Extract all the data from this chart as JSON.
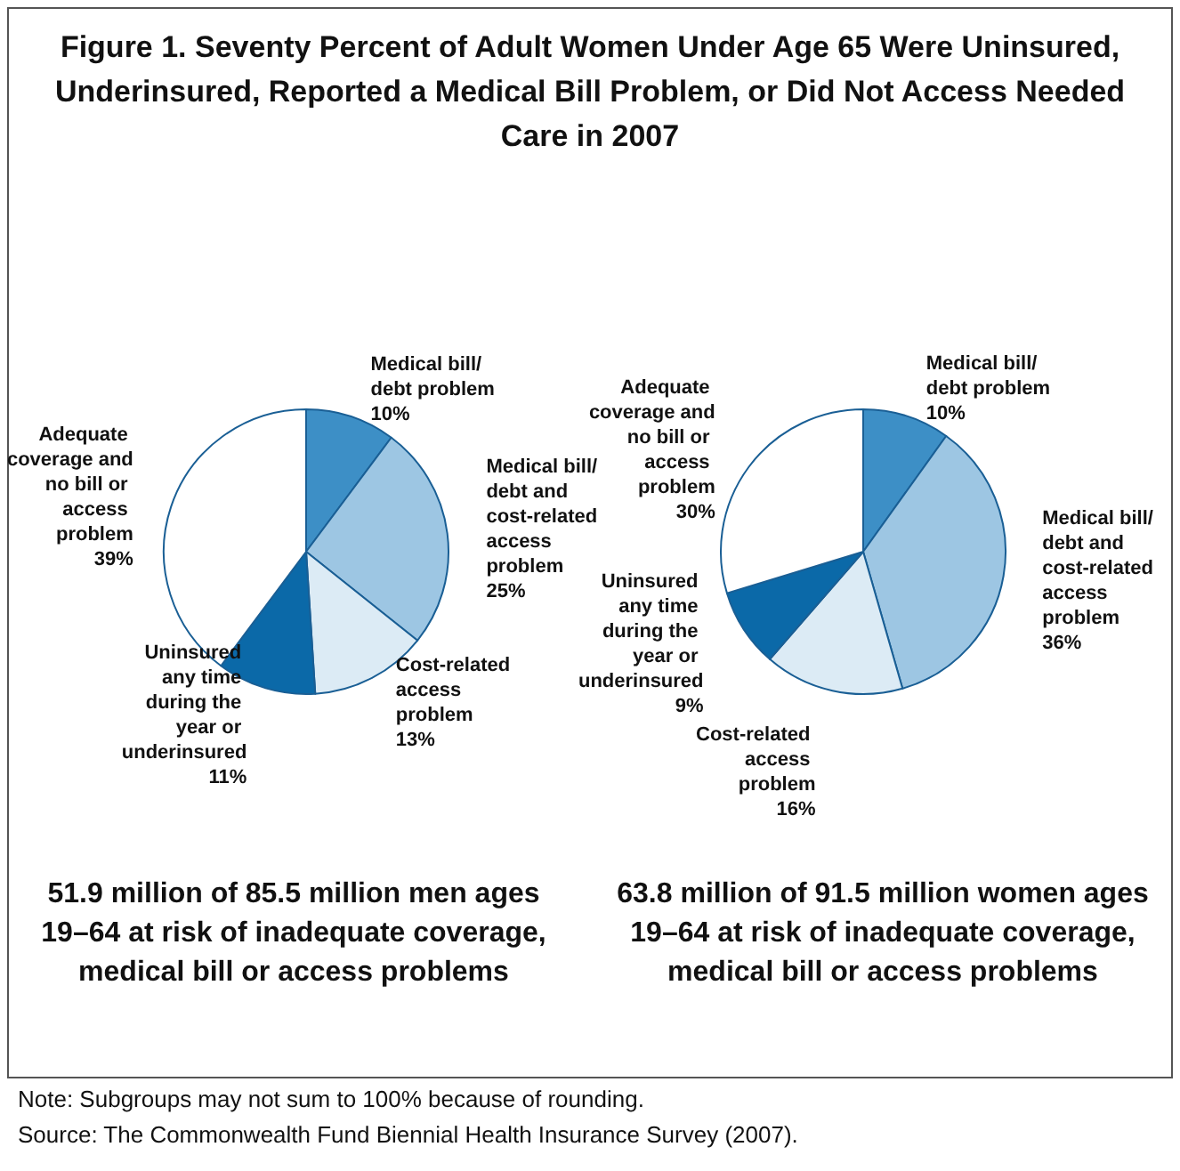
{
  "chart_data": [
    {
      "type": "pie",
      "title": "Figure 1. Seventy Percent of Adult Women Under Age 65 Were Uninsured, Underinsured, Reported a Medical Bill Problem, or Did Not Access Needed Care in 2007",
      "xlabel": "51.9 million of 85.5 million men ages 19–64 at risk of inadequate coverage, medical bill or access problems",
      "categories": [
        "Medical bill/debt problem",
        "Medical bill/debt and cost-related access problem",
        "Cost-related access problem",
        "Uninsured any time during the year or underinsured",
        "Adequate coverage and no bill or access problem"
      ],
      "values": [
        10,
        25,
        13,
        11,
        39
      ],
      "value_labels": [
        "10%",
        "25%",
        "13%",
        "11%",
        "39%"
      ],
      "colors": [
        "#3d8fc6",
        "#9dc6e3",
        "#dcebf5",
        "#0b69a8",
        "#ffffff"
      ]
    },
    {
      "type": "pie",
      "xlabel": "63.8 million of 91.5 million women ages 19–64 at risk of inadequate coverage, medical bill or access problems",
      "categories": [
        "Medical bill/debt problem",
        "Medical bill/debt and cost-related access problem",
        "Cost-related access problem",
        "Uninsured any time during the year or underinsured",
        "Adequate coverage and no bill or access problem"
      ],
      "values": [
        10,
        36,
        16,
        9,
        30
      ],
      "value_labels": [
        "10%",
        "36%",
        "16%",
        "9%",
        "30%"
      ],
      "colors": [
        "#3d8fc6",
        "#9dc6e3",
        "#dcebf5",
        "#0b69a8",
        "#ffffff"
      ],
      "annotations": [
        "Note: Subgroups may not sum to 100% because of rounding.",
        "Source: The Commonwealth Fund Biennial Health Insurance Survey (2007)."
      ]
    }
  ]
}
